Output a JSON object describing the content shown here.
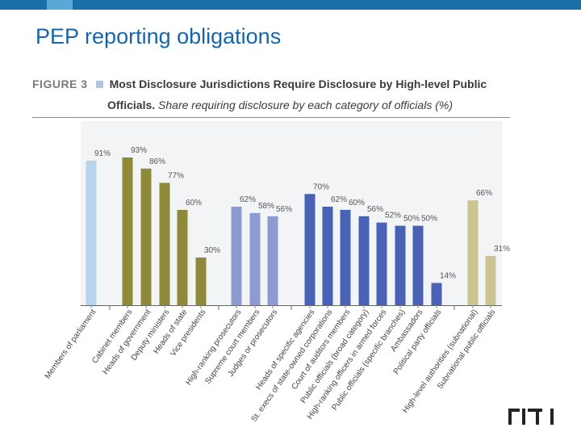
{
  "slide": {
    "title": "PEP reporting obligations"
  },
  "figure": {
    "label": "FIGURE 3",
    "title_line1": "Most Disclosure Jurisdictions Require Disclosure by High-level Public",
    "title_line2_bold": "Officials.",
    "title_line2_rest": " Share requiring disclosure by each category of officials (%)"
  },
  "chart_data": {
    "type": "bar",
    "ylim": [
      0,
      100
    ],
    "grid": false,
    "categories": [
      "Members of parliament",
      "Cabinet members",
      "Heads of government",
      "Deputy ministers",
      "Heads of state",
      "Vice presidents",
      "High-ranking prosecutors",
      "Supreme court members",
      "Judges or prosecutors",
      "Heads of specific agencies",
      "St. execs of state-owned corporations",
      "Court of auditors members",
      "Public officials (broad category)",
      "High-ranking officers in armed forces",
      "Public officials (specific branches)",
      "Ambassadors",
      "Political party officials",
      "High-level authorities (subnational)",
      "Subnational public officials"
    ],
    "values": [
      91,
      93,
      86,
      77,
      60,
      30,
      62,
      58,
      56,
      70,
      62,
      60,
      56,
      52,
      50,
      50,
      14,
      66,
      31
    ],
    "value_labels": [
      "91%",
      "93%",
      "86%",
      "77%",
      "60%",
      "30%",
      "62%",
      "58%",
      "56%",
      "70%",
      "62%",
      "60%",
      "56%",
      "52%",
      "50%",
      "50%",
      "14%",
      "66%",
      "31%"
    ],
    "group_colors": {
      "legislature": "#b8d3ec",
      "executive": "#8f8a3a",
      "judiciary": "#8e9bd1",
      "public_officials": "#4a62b6",
      "subnational": "#cbc391"
    },
    "groups": [
      "legislature",
      "executive",
      "executive",
      "executive",
      "executive",
      "executive",
      "judiciary",
      "judiciary",
      "judiciary",
      "public_officials",
      "public_officials",
      "public_officials",
      "public_officials",
      "public_officials",
      "public_officials",
      "public_officials",
      "public_officials",
      "subnational",
      "subnational"
    ]
  },
  "logo": {
    "text": "EITI"
  }
}
